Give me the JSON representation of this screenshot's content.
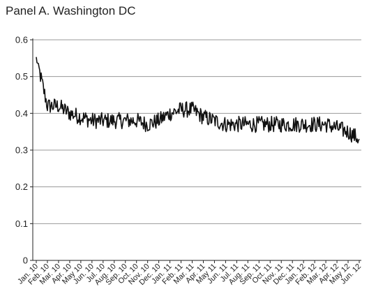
{
  "chart_data": {
    "type": "line",
    "title": "Panel A. Washington DC",
    "xlabel": "",
    "ylabel": "",
    "ylim": [
      0,
      0.6
    ],
    "y_ticks": [
      "0",
      "0.1",
      "0.2",
      "0.3",
      "0.4",
      "0.5",
      "0.6"
    ],
    "y_tick_values": [
      0,
      0.1,
      0.2,
      0.3,
      0.4,
      0.5,
      0.6
    ],
    "grid": "horizontal",
    "x_ticks": [
      "Jan. 10",
      "Feb. 10",
      "Mar. 10",
      "Apr. 10",
      "May 10",
      "Jun. 10",
      "Jul. 10",
      "Aug. 10",
      "Sep. 10",
      "Oct. 10",
      "Nov. 10",
      "Dec. 10",
      "Jan. 11",
      "Feb. 11",
      "Mar. 11",
      "Apr. 11",
      "May 11",
      "Jun. 11",
      "Jul. 11",
      "Aug. 11",
      "Sep. 11",
      "Oct. 11",
      "Nov. 11",
      "Dec. 11",
      "Jan. 12",
      "Feb. 12",
      "Mar. 12",
      "Apr. 12",
      "May 12",
      "Jun. 12"
    ],
    "series": [
      {
        "x": [
          "Jan. 10",
          "Feb. 10",
          "Mar. 10",
          "Apr. 10",
          "May 10",
          "Jun. 10",
          "Jul. 10",
          "Aug. 10",
          "Sep. 10",
          "Oct. 10",
          "Nov. 10",
          "Dec. 10",
          "Jan. 11",
          "Feb. 11",
          "Mar. 11",
          "Apr. 11",
          "May 11",
          "Jun. 11",
          "Jul. 11",
          "Aug. 11",
          "Sep. 11",
          "Oct. 11",
          "Nov. 11",
          "Dec. 11",
          "Jan. 12",
          "Feb. 12",
          "Mar. 12",
          "Apr. 12",
          "May 12",
          "Jun. 12"
        ],
        "values": [
          0.55,
          0.42,
          0.42,
          0.4,
          0.39,
          0.38,
          0.38,
          0.38,
          0.38,
          0.38,
          0.37,
          0.38,
          0.4,
          0.41,
          0.41,
          0.39,
          0.38,
          0.37,
          0.37,
          0.37,
          0.37,
          0.37,
          0.37,
          0.37,
          0.37,
          0.37,
          0.37,
          0.36,
          0.35,
          0.33
        ]
      }
    ],
    "line_color": "#111111"
  }
}
